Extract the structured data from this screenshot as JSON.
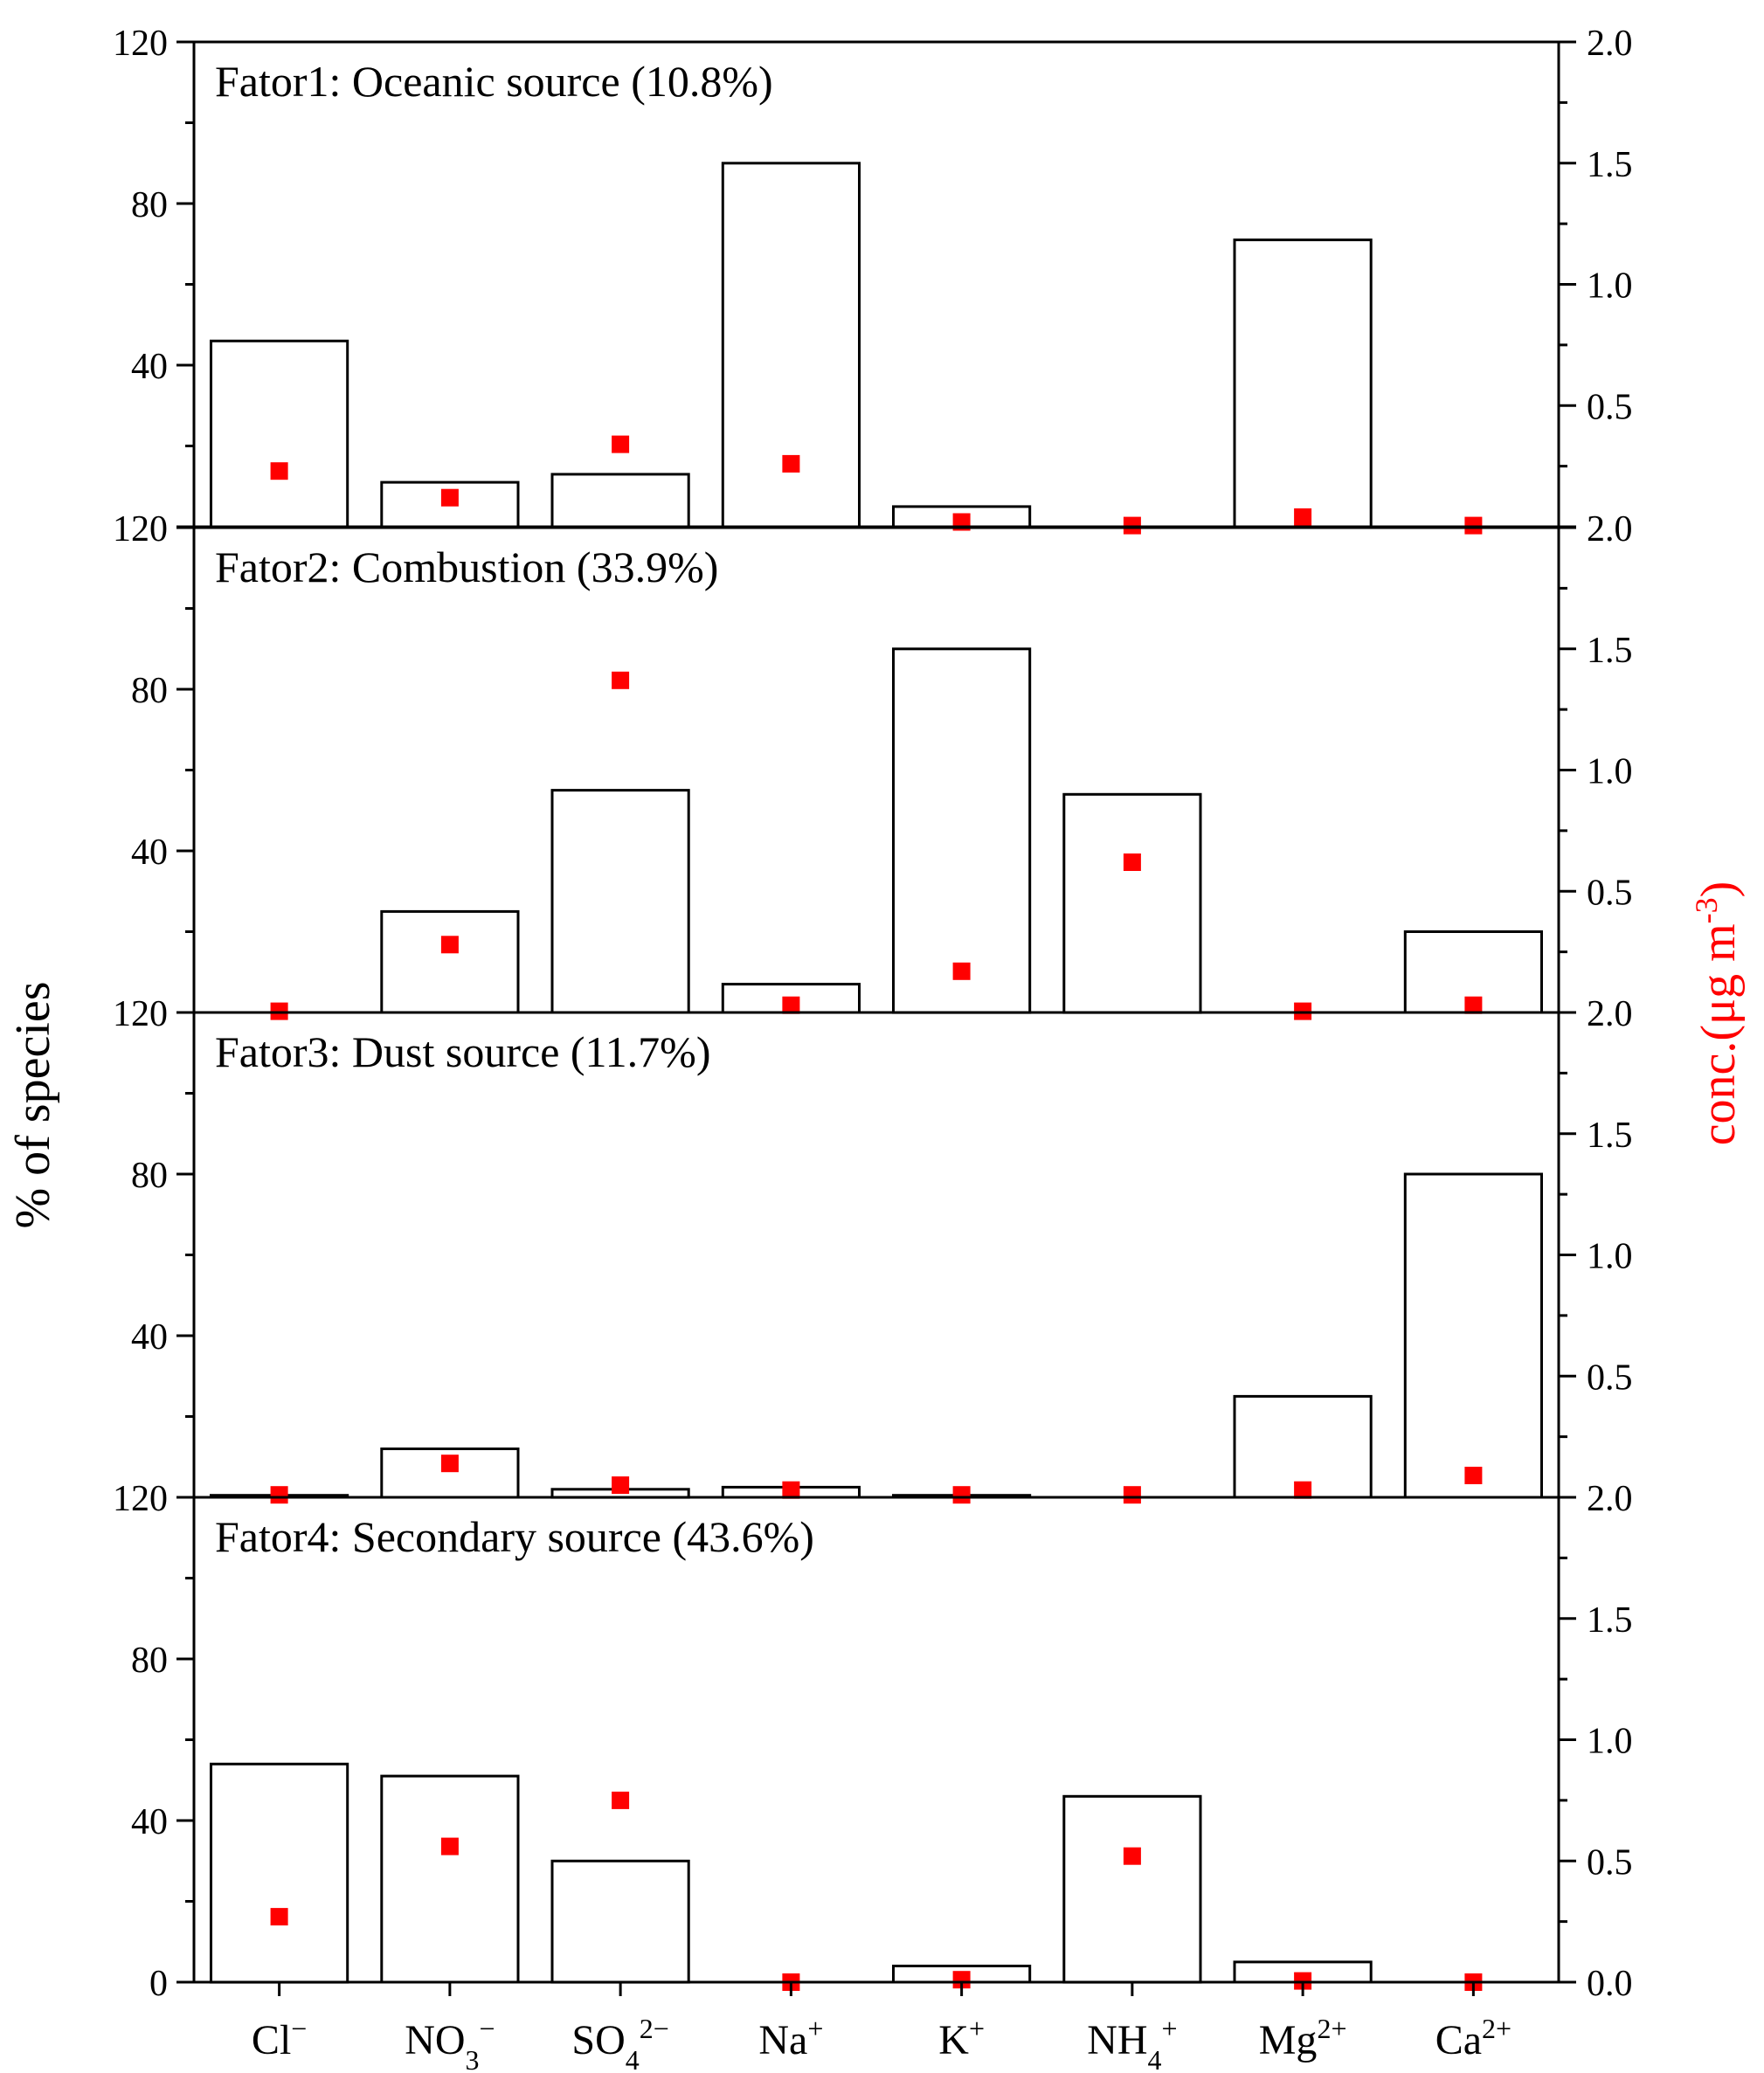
{
  "chart_data": {
    "type": "bar",
    "ylabel_left": "% of species",
    "ylabel_right": "conc.(μg m-3)",
    "ylabel_right_parts": {
      "base": "conc.(μg m",
      "sup": "-3",
      "close": ")"
    },
    "left_ylim": [
      0,
      120
    ],
    "left_ticks": [
      "0",
      "40",
      "80",
      "120"
    ],
    "right_ylim": [
      0,
      2.0
    ],
    "right_ticks": [
      "0.0",
      "0.5",
      "1.0",
      "1.5",
      "2.0"
    ],
    "categories": [
      "Cl−",
      "NO3−",
      "SO42−",
      "Na+",
      "K+",
      "NH4+",
      "Mg2+",
      "Ca2+"
    ],
    "category_labels": [
      {
        "base": "Cl",
        "sub": "",
        "sup": "−"
      },
      {
        "base": "NO",
        "sub": "3",
        "sup": "−"
      },
      {
        "base": "SO",
        "sub": "4",
        "sup": "2−"
      },
      {
        "base": "Na",
        "sub": "",
        "sup": "+"
      },
      {
        "base": "K",
        "sub": "",
        "sup": "+"
      },
      {
        "base": "NH",
        "sub": "4",
        "sup": "+"
      },
      {
        "base": "Mg",
        "sub": "",
        "sup": "2+"
      },
      {
        "base": "Ca",
        "sub": "",
        "sup": "2+"
      }
    ],
    "panels": [
      {
        "title": "Fator1: Oceanic source (10.8%)",
        "percent_of_species": [
          46,
          11,
          13,
          90,
          5,
          0,
          71,
          0
        ],
        "concentration": [
          0.23,
          0.12,
          0.34,
          0.26,
          0.02,
          0.005,
          0.04,
          0.005
        ]
      },
      {
        "title": "Fator2: Combustion (33.9%)",
        "percent_of_species": [
          0,
          25,
          55,
          7,
          90,
          54,
          0,
          20
        ],
        "concentration": [
          0.005,
          0.28,
          1.37,
          0.03,
          0.17,
          0.62,
          0.005,
          0.03
        ]
      },
      {
        "title": "Fator3: Dust source (11.7%)",
        "percent_of_species": [
          0.5,
          12,
          2,
          2.5,
          0.5,
          0,
          25,
          80
        ],
        "concentration": [
          0.01,
          0.14,
          0.05,
          0.03,
          0.01,
          0.01,
          0.03,
          0.09
        ]
      },
      {
        "title": "Fator4: Secondary source (43.6%)",
        "percent_of_species": [
          54,
          51,
          30,
          0,
          4,
          46,
          5,
          0
        ],
        "concentration": [
          0.27,
          0.56,
          0.75,
          0.0,
          0.01,
          0.52,
          0.005,
          0.0
        ]
      }
    ],
    "series": [
      {
        "name": "% of species",
        "style": "open bars",
        "color": "#000000"
      },
      {
        "name": "conc.",
        "style": "square markers",
        "color": "#ff0000"
      }
    ]
  }
}
